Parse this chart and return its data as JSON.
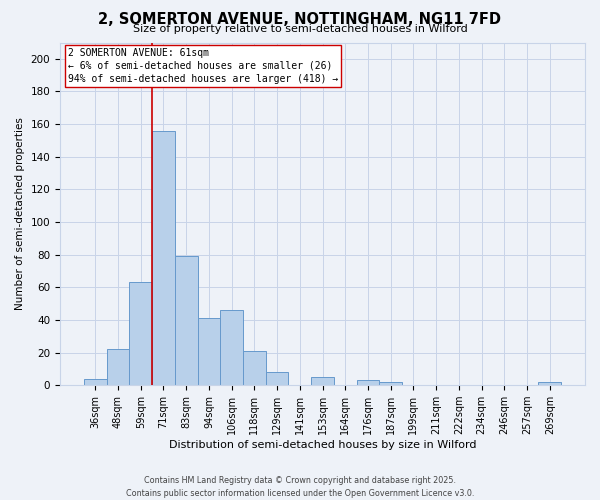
{
  "title": "2, SOMERTON AVENUE, NOTTINGHAM, NG11 7FD",
  "subtitle": "Size of property relative to semi-detached houses in Wilford",
  "xlabel": "Distribution of semi-detached houses by size in Wilford",
  "ylabel": "Number of semi-detached properties",
  "bar_labels": [
    "36sqm",
    "48sqm",
    "59sqm",
    "71sqm",
    "83sqm",
    "94sqm",
    "106sqm",
    "118sqm",
    "129sqm",
    "141sqm",
    "153sqm",
    "164sqm",
    "176sqm",
    "187sqm",
    "199sqm",
    "211sqm",
    "222sqm",
    "234sqm",
    "246sqm",
    "257sqm",
    "269sqm"
  ],
  "bar_values": [
    4,
    22,
    63,
    156,
    79,
    41,
    46,
    21,
    8,
    0,
    5,
    0,
    3,
    2,
    0,
    0,
    0,
    0,
    0,
    0,
    2
  ],
  "bar_color": "#b8d0ea",
  "bar_edge_color": "#6699cc",
  "vline_x": 2.5,
  "vline_color": "#cc0000",
  "annotation_line1": "2 SOMERTON AVENUE: 61sqm",
  "annotation_line2": "← 6% of semi-detached houses are smaller (26)",
  "annotation_line3": "94% of semi-detached houses are larger (418) →",
  "ylim": [
    0,
    210
  ],
  "yticks": [
    0,
    20,
    40,
    60,
    80,
    100,
    120,
    140,
    160,
    180,
    200
  ],
  "background_color": "#eef2f8",
  "grid_color": "#c8d4e8",
  "footer_line1": "Contains HM Land Registry data © Crown copyright and database right 2025.",
  "footer_line2": "Contains public sector information licensed under the Open Government Licence v3.0."
}
